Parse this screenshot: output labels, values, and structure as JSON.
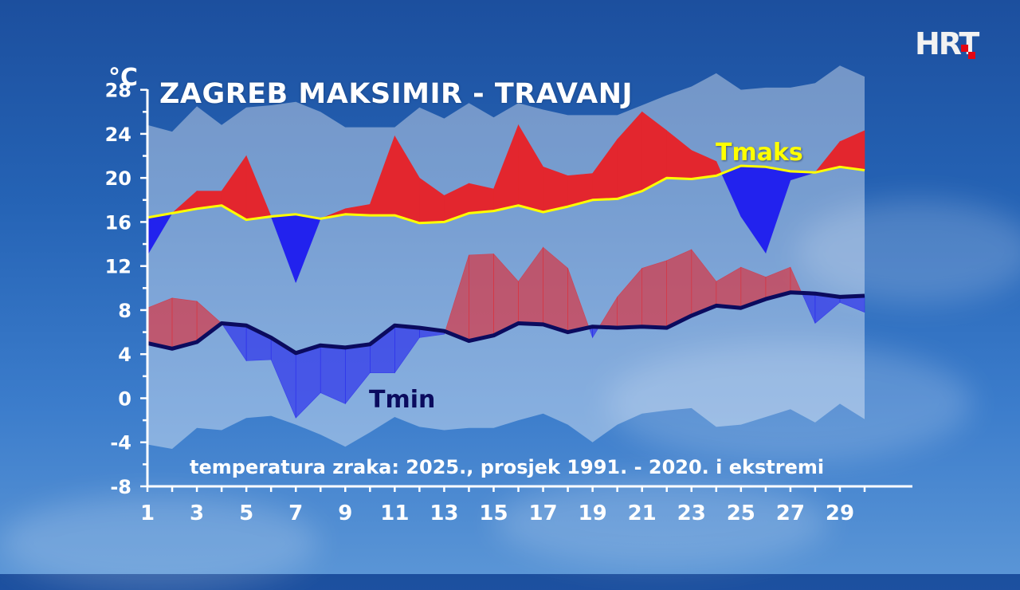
{
  "brand": {
    "logo_text": "HRT",
    "accent": "#e30613"
  },
  "chart_data": {
    "type": "area",
    "title": "ZAGREB MAKSIMIR - TRAVANJ",
    "subtitle": "temperatura zraka: 2025., prosjek 1991. - 2020. i ekstremi",
    "ylabel": "°C",
    "xlabel": "",
    "ylim": [
      -8,
      30
    ],
    "yticks": [
      28,
      24,
      20,
      16,
      12,
      8,
      4,
      0,
      -4,
      -8
    ],
    "xticks": [
      1,
      3,
      5,
      7,
      9,
      11,
      13,
      15,
      17,
      19,
      21,
      23,
      25,
      27,
      29
    ],
    "x": [
      1,
      2,
      3,
      4,
      5,
      6,
      7,
      8,
      9,
      10,
      11,
      12,
      13,
      14,
      15,
      16,
      17,
      18,
      19,
      20,
      21,
      22,
      23,
      24,
      25,
      26,
      27,
      28,
      29,
      30
    ],
    "grid": false,
    "series": [
      {
        "name": "Tmaks",
        "role": "avg_max",
        "color": "#ffff00",
        "values": [
          16.4,
          16.8,
          17.2,
          17.5,
          16.2,
          16.5,
          16.7,
          16.3,
          16.7,
          16.6,
          16.6,
          15.9,
          16.0,
          16.8,
          17.0,
          17.5,
          16.9,
          17.4,
          18.0,
          18.1,
          18.8,
          20.0,
          19.9,
          20.2,
          21.1,
          21.0,
          20.6,
          20.5,
          21.0,
          20.7
        ]
      },
      {
        "name": "",
        "role": "max_2025",
        "color_above": "#e3262e",
        "color_below": "#2222ee",
        "values": [
          13.0,
          16.8,
          18.8,
          18.8,
          22.0,
          16.5,
          10.5,
          16.3,
          17.2,
          17.6,
          23.8,
          20.0,
          18.4,
          19.5,
          19.0,
          24.8,
          21.0,
          20.2,
          20.4,
          23.5,
          26.0,
          24.3,
          22.5,
          21.5,
          16.5,
          13.2,
          19.8,
          20.5,
          23.3,
          24.3
        ]
      },
      {
        "name": "Tmin",
        "role": "avg_min",
        "color": "#0b0b5e",
        "values": [
          5.0,
          4.5,
          5.1,
          6.8,
          6.6,
          5.5,
          4.1,
          4.8,
          4.6,
          4.9,
          6.6,
          6.4,
          6.1,
          5.2,
          5.7,
          6.8,
          6.7,
          6.0,
          6.5,
          6.4,
          6.5,
          6.4,
          7.5,
          8.4,
          8.2,
          9.0,
          9.6,
          9.5,
          9.2,
          9.3
        ]
      },
      {
        "name": "",
        "role": "min_2025",
        "color_above": "#e3262e",
        "color_below": "#2222ee",
        "values": [
          8.2,
          9.1,
          8.8,
          6.8,
          3.4,
          3.5,
          -1.8,
          0.5,
          -0.5,
          2.3,
          2.3,
          5.5,
          5.8,
          13.0,
          13.1,
          10.6,
          13.7,
          11.8,
          5.5,
          9.2,
          11.8,
          12.5,
          13.5,
          10.6,
          11.9,
          11.0,
          11.9,
          6.8,
          8.7,
          7.8
        ]
      },
      {
        "name": "",
        "role": "record_max",
        "values": [
          24.8,
          24.2,
          26.5,
          24.8,
          26.4,
          26.6,
          26.9,
          26.0,
          24.6,
          24.6,
          24.6,
          26.4,
          25.4,
          26.8,
          25.5,
          26.8,
          26.2,
          25.7,
          25.7,
          25.7,
          26.6,
          27.5,
          28.3,
          29.5,
          28.0,
          28.2,
          28.2,
          28.6,
          30.2,
          29.2
        ]
      },
      {
        "name": "",
        "role": "record_min",
        "values": [
          -4.2,
          -4.6,
          -2.7,
          -2.9,
          -1.8,
          -1.6,
          -2.4,
          -3.3,
          -4.4,
          -3.1,
          -1.7,
          -2.6,
          -2.9,
          -2.7,
          -2.7,
          -2.0,
          -1.4,
          -2.4,
          -4.0,
          -2.4,
          -1.4,
          -1.1,
          -0.9,
          -2.6,
          -2.4,
          -1.7,
          -1.0,
          -2.2,
          -0.5,
          -1.9
        ]
      }
    ]
  }
}
